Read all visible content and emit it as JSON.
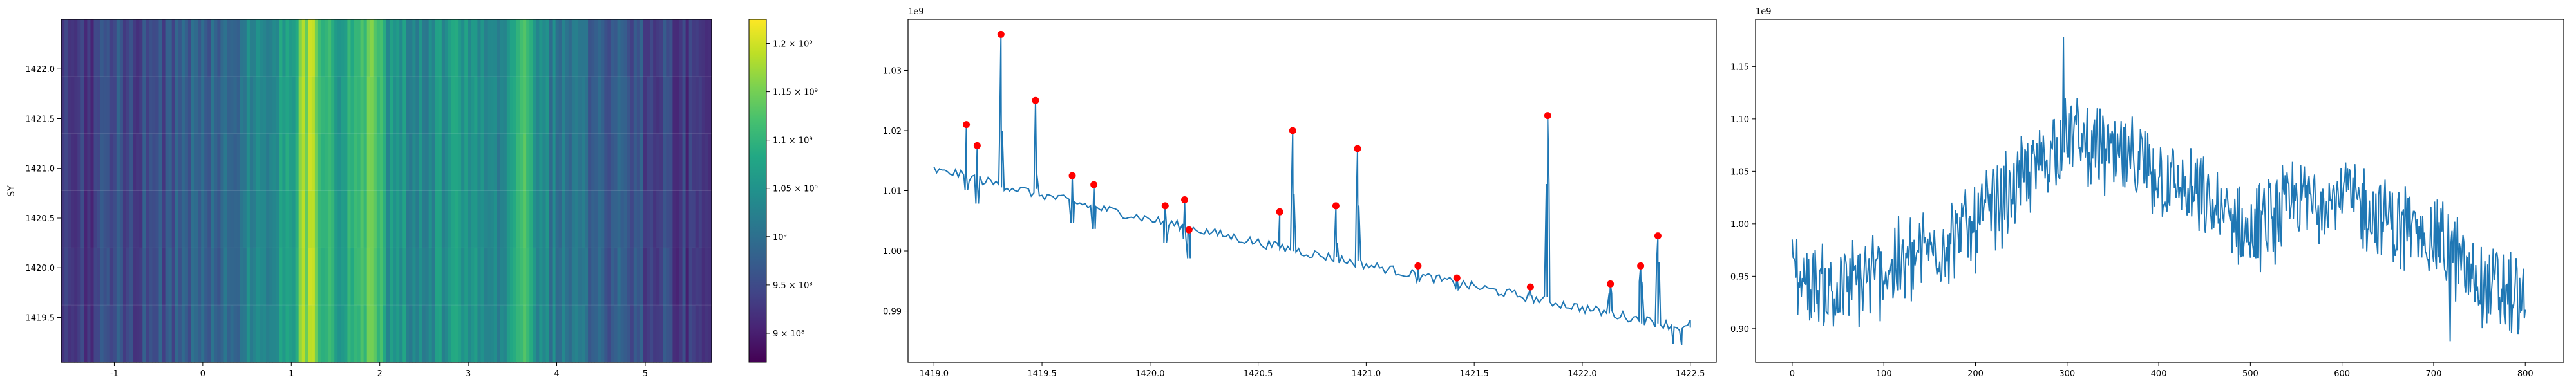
{
  "chart_data": [
    {
      "type": "heatmap",
      "ylabel": "SY",
      "xlim": [
        -1.6,
        5.75
      ],
      "ylim": [
        1419.05,
        1422.5
      ],
      "x_ticks": [
        "-1",
        "0",
        "1",
        "2",
        "3",
        "4",
        "5"
      ],
      "y_ticks": [
        "1419.5",
        "1420.0",
        "1420.5",
        "1421.0",
        "1421.5",
        "1422.0"
      ],
      "colormap": "viridis",
      "colorbar": {
        "range": [
          870000000,
          1225000000
        ],
        "tick_values": [
          900000000,
          950000000,
          1000000000,
          1050000000,
          1100000000,
          1150000000,
          1200000000
        ],
        "tick_labels": [
          "9 × 10⁸",
          "9.5 × 10⁸",
          "10⁹",
          "1.05 × 10⁹",
          "1.1 × 10⁹",
          "1.15 × 10⁹",
          "1.2 × 10⁹"
        ]
      },
      "column_profile": {
        "x": [
          -1.6,
          -1.3,
          -1.0,
          -0.7,
          -0.4,
          -0.1,
          0.2,
          0.5,
          0.8,
          1.0,
          1.15,
          1.25,
          1.4,
          1.6,
          1.8,
          1.9,
          2.1,
          2.4,
          2.7,
          3.0,
          3.2,
          3.45,
          3.6,
          3.75,
          4.0,
          4.3,
          4.6,
          4.9,
          5.2,
          5.5,
          5.75
        ],
        "values": [
          915000000,
          935000000,
          955000000,
          945000000,
          960000000,
          985000000,
          990000000,
          1020000000,
          1045000000,
          1075000000,
          1170000000,
          1180000000,
          1090000000,
          1070000000,
          1110000000,
          1130000000,
          1060000000,
          1040000000,
          1050000000,
          1060000000,
          1020000000,
          1050000000,
          1120000000,
          1060000000,
          1010000000,
          990000000,
          970000000,
          960000000,
          945000000,
          925000000,
          905000000
        ]
      }
    },
    {
      "type": "line",
      "offset_text": "1e9",
      "xlim": [
        1418.88,
        1422.62
      ],
      "ylim": [
        0.9815,
        1.0385
      ],
      "x_ticks": [
        "1419.0",
        "1419.5",
        "1420.0",
        "1420.5",
        "1421.0",
        "1421.5",
        "1422.0",
        "1422.5"
      ],
      "y_ticks": [
        "0.99",
        "1.00",
        "1.01",
        "1.02",
        "1.03"
      ],
      "start_x": 1419.0,
      "end_x": 1422.5,
      "trend_start": 1.014,
      "trend_end": 0.987,
      "peaks": [
        {
          "x": 1419.15,
          "y": 1.021
        },
        {
          "x": 1419.2,
          "y": 1.0175
        },
        {
          "x": 1419.31,
          "y": 1.036
        },
        {
          "x": 1419.47,
          "y": 1.025
        },
        {
          "x": 1419.64,
          "y": 1.0125
        },
        {
          "x": 1419.74,
          "y": 1.011
        },
        {
          "x": 1420.07,
          "y": 1.0075
        },
        {
          "x": 1420.16,
          "y": 1.0085
        },
        {
          "x": 1420.18,
          "y": 1.0035
        },
        {
          "x": 1420.6,
          "y": 1.0065
        },
        {
          "x": 1420.66,
          "y": 1.02
        },
        {
          "x": 1420.86,
          "y": 1.0075
        },
        {
          "x": 1420.96,
          "y": 1.017
        },
        {
          "x": 1421.24,
          "y": 0.9975
        },
        {
          "x": 1421.42,
          "y": 0.9955
        },
        {
          "x": 1421.76,
          "y": 0.994
        },
        {
          "x": 1421.84,
          "y": 1.0225
        },
        {
          "x": 1422.13,
          "y": 0.9945
        },
        {
          "x": 1422.27,
          "y": 0.9975
        },
        {
          "x": 1422.35,
          "y": 1.0025
        }
      ],
      "colors": {
        "line": "#1f77b4",
        "marker": "#ff0000"
      }
    },
    {
      "type": "line",
      "offset_text": "1e9",
      "xlim": [
        -40,
        842
      ],
      "ylim": [
        0.868,
        1.195
      ],
      "x_ticks": [
        "0",
        "100",
        "200",
        "300",
        "400",
        "500",
        "600",
        "700",
        "800"
      ],
      "y_ticks": [
        "0.90",
        "0.95",
        "1.00",
        "1.05",
        "1.10",
        "1.15"
      ],
      "n_points": 801,
      "envelope": {
        "x": [
          0,
          50,
          100,
          150,
          200,
          250,
          300,
          350,
          400,
          450,
          500,
          550,
          600,
          650,
          700,
          750,
          800
        ],
        "y": [
          0.95,
          0.935,
          0.955,
          0.975,
          1.0,
          1.04,
          1.085,
          1.065,
          1.045,
          1.02,
          0.99,
          1.02,
          1.03,
          1.0,
          0.99,
          0.945,
          0.925
        ]
      },
      "colors": {
        "line": "#1f77b4"
      }
    }
  ]
}
